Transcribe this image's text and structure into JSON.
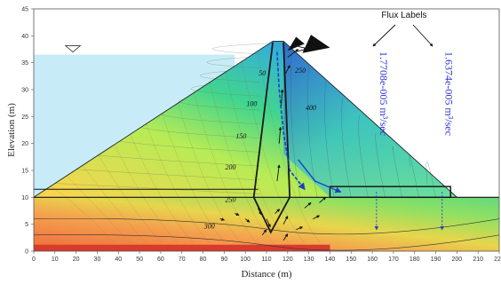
{
  "chart_data": {
    "type": "seepage-contour",
    "xlabel": "Distance (m)",
    "ylabel": "Elevation (m)",
    "xlim": [
      0,
      220
    ],
    "ylim": [
      0,
      45
    ],
    "xticks": [
      0,
      10,
      20,
      30,
      40,
      50,
      60,
      70,
      80,
      90,
      100,
      110,
      120,
      130,
      140,
      150,
      160,
      170,
      180,
      190,
      200,
      210,
      220
    ],
    "yticks": [
      0,
      5,
      10,
      15,
      20,
      25,
      30,
      35,
      40,
      45
    ],
    "reservoir_level": 36.5,
    "contour_labels": [
      {
        "text": "50",
        "x": 108,
        "y": 33.0
      },
      {
        "text": "100",
        "x": 103,
        "y": 27.3
      },
      {
        "text": "150",
        "x": 98,
        "y": 21.3
      },
      {
        "text": "200",
        "x": 93,
        "y": 15.5
      },
      {
        "text": "250",
        "x": 93,
        "y": 9.5
      },
      {
        "text": "300",
        "x": 83,
        "y": 4.5
      },
      {
        "text": "250",
        "x": 126,
        "y": 33.5
      },
      {
        "text": "400",
        "x": 131,
        "y": 26.5
      }
    ],
    "flux_header": "Flux Labels",
    "flux_labels": [
      {
        "text": "1.7708e-005 m³/sec",
        "x": 162
      },
      {
        "text": "1.6374e-005 m³/sec",
        "x": 193
      }
    ],
    "colors": {
      "reservoir": "#c7ecf7",
      "flux_text": "#2a2fd6",
      "core_line": "#1a1a1a",
      "phreatic": "#1d3fc4"
    }
  }
}
